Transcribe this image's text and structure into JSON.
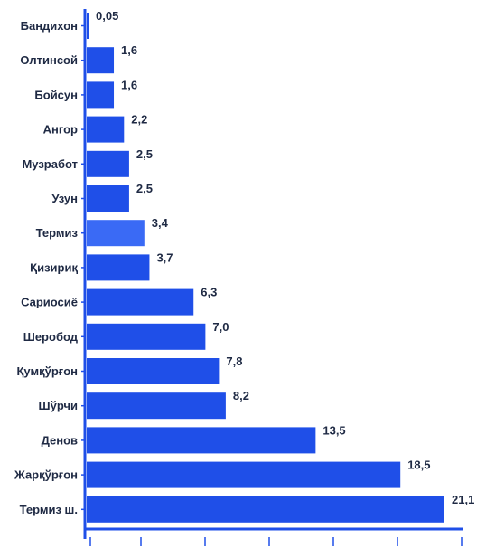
{
  "chart_data": {
    "type": "bar",
    "orientation": "horizontal",
    "categories": [
      "Бандихон",
      "Олтинсой",
      "Бойсун",
      "Ангор",
      "Музработ",
      "Узун",
      "Термиз",
      "Қизириқ",
      "Сариосиё",
      "Шеробод",
      "Қумқўрғон",
      "Шўрчи",
      "Денов",
      "Жарқўрғон",
      "Термиз ш."
    ],
    "values": [
      0.05,
      1.6,
      1.6,
      2.2,
      2.5,
      2.5,
      3.4,
      3.7,
      6.3,
      7.0,
      7.8,
      8.2,
      13.5,
      18.5,
      21.1
    ],
    "value_labels": [
      "0,05",
      "1,6",
      "1,6",
      "2,2",
      "2,5",
      "2,5",
      "3,4",
      "3,7",
      "6,3",
      "7,0",
      "7,8",
      "8,2",
      "13,5",
      "18,5",
      "21,1"
    ],
    "title": "",
    "xlabel": "",
    "ylabel": "",
    "grid": false,
    "legend": "none",
    "colors": {
      "bar": "#1f4fe8",
      "bar_highlight": "#3a6af5",
      "axis": "#1f4fe8",
      "text": "#1f2a44"
    },
    "highlight_index": 6
  }
}
